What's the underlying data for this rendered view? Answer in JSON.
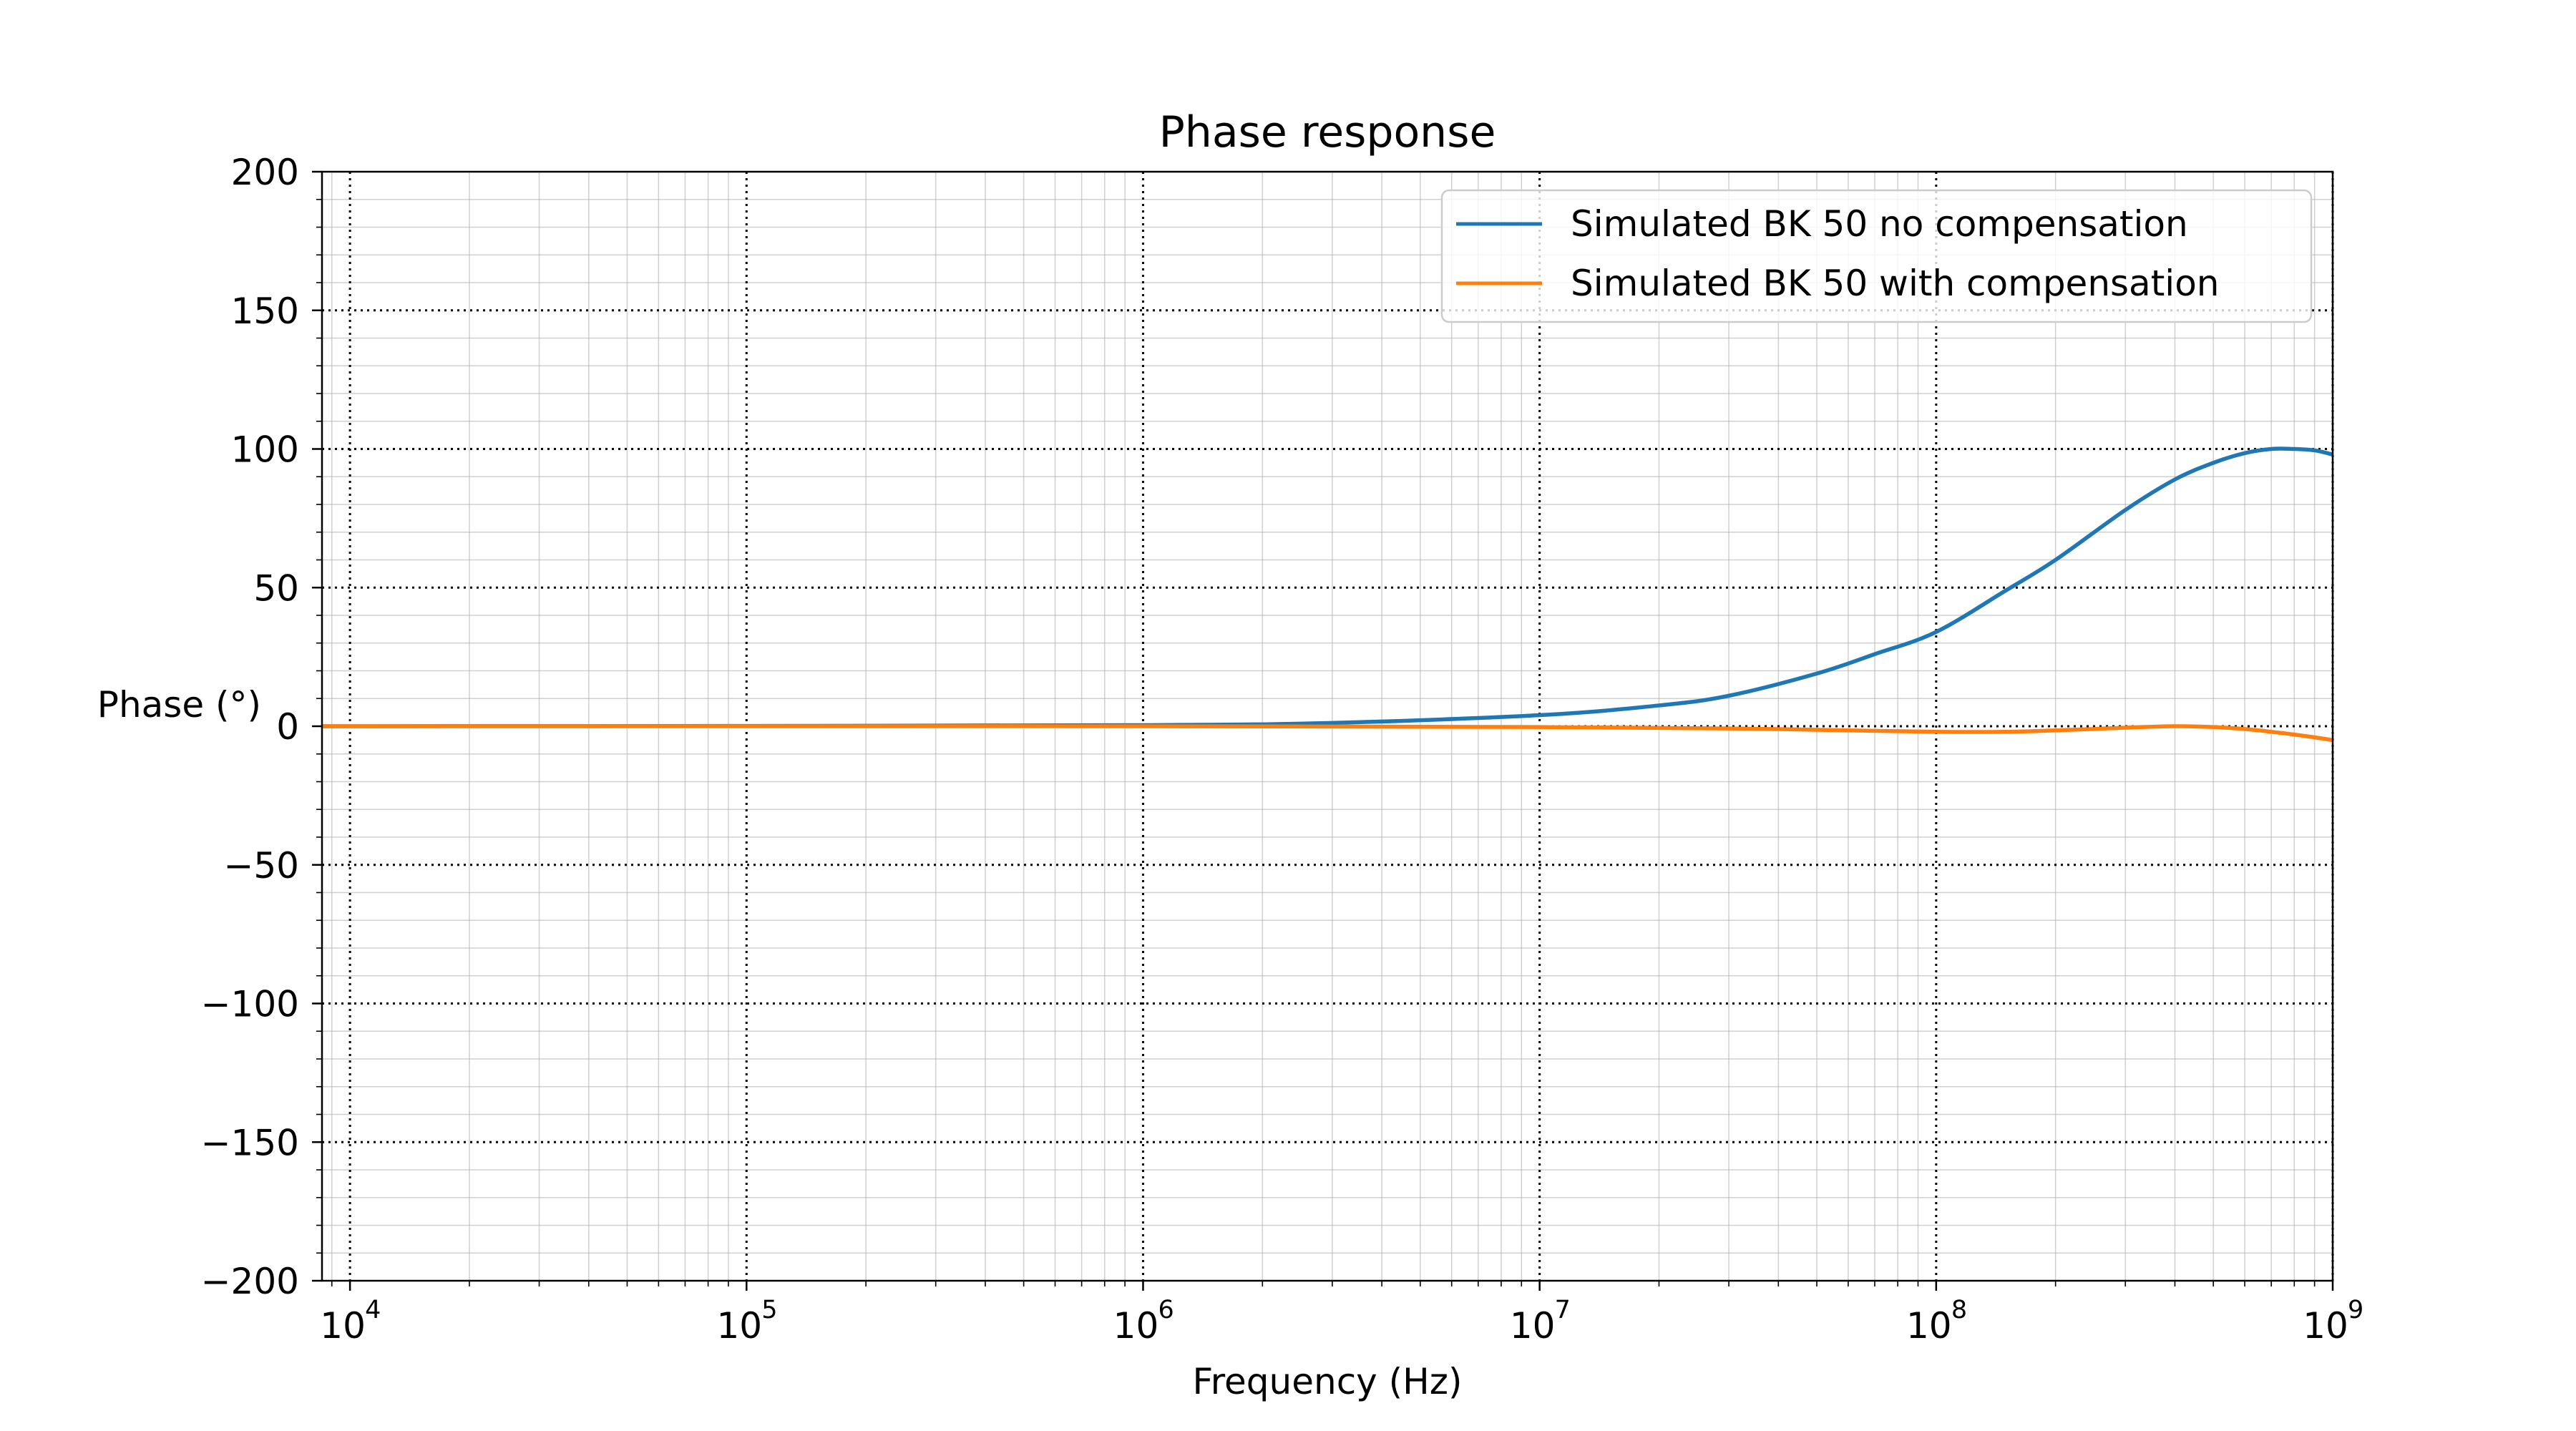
{
  "chart_data": {
    "type": "line",
    "title": "Phase response",
    "xlabel": "Frequency (Hz)",
    "ylabel": "Phase (°)",
    "xscale": "log",
    "xlim": [
      8500,
      1000000000
    ],
    "ylim": [
      -200,
      200
    ],
    "x_ticks": [
      {
        "base": "10",
        "exp": "4",
        "value": 10000
      },
      {
        "base": "10",
        "exp": "5",
        "value": 100000
      },
      {
        "base": "10",
        "exp": "6",
        "value": 1000000
      },
      {
        "base": "10",
        "exp": "7",
        "value": 10000000
      },
      {
        "base": "10",
        "exp": "8",
        "value": 100000000
      },
      {
        "base": "10",
        "exp": "9",
        "value": 1000000000
      }
    ],
    "y_ticks": [
      {
        "label": "200",
        "value": 200
      },
      {
        "label": "150",
        "value": 150
      },
      {
        "label": "100",
        "value": 100
      },
      {
        "label": "50",
        "value": 50
      },
      {
        "label": "0",
        "value": 0
      },
      {
        "label": "−50",
        "value": -50
      },
      {
        "label": "−100",
        "value": -100
      },
      {
        "label": "−150",
        "value": -150
      },
      {
        "label": "−200",
        "value": -200
      }
    ],
    "grid": true,
    "legend_position": "top-right",
    "series": [
      {
        "name": "Simulated BK 50 no compensation",
        "color": "#1f77b4",
        "x": [
          8500,
          100000,
          1000000,
          3000000,
          10000000,
          20000000,
          30000000,
          50000000,
          70000000,
          100000000,
          150000000,
          200000000,
          300000000,
          400000000,
          500000000,
          600000000,
          700000000,
          800000000,
          900000000,
          1000000000
        ],
        "y": [
          0,
          0.1,
          0.4,
          1.2,
          4,
          7.5,
          11,
          19,
          26,
          34,
          49,
          60,
          78,
          89,
          95,
          98.5,
          100,
          100,
          99.5,
          98
        ]
      },
      {
        "name": "Simulated BK 50 with compensation",
        "color": "#ff7f0e",
        "x": [
          8500,
          100000,
          1000000,
          10000000,
          30000000,
          50000000,
          100000000,
          150000000,
          200000000,
          250000000,
          300000000,
          400000000,
          500000000,
          600000000,
          700000000,
          800000000,
          900000000,
          1000000000
        ],
        "y": [
          0,
          0,
          0,
          -0.3,
          -0.8,
          -1.3,
          -2,
          -2,
          -1.5,
          -1,
          -0.5,
          0,
          -0.3,
          -1,
          -2,
          -3,
          -4,
          -5
        ]
      }
    ]
  }
}
